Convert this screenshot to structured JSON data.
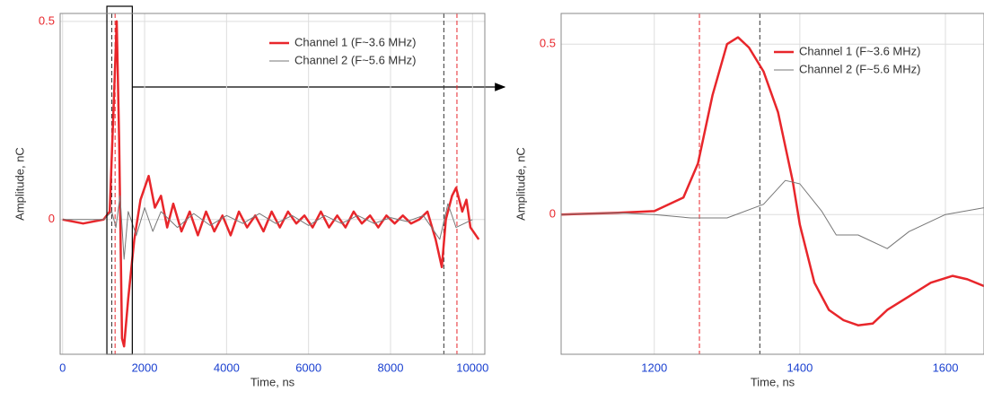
{
  "chart_data": [
    {
      "type": "line",
      "x_label": "Time, ns",
      "y_label": "Amplitude, nC",
      "xlim": [
        -60,
        10300
      ],
      "ylim": [
        -0.34,
        0.52
      ],
      "xticks": [
        0,
        2000,
        4000,
        6000,
        8000,
        10000
      ],
      "yticks": [
        0,
        0.5
      ],
      "xtick_color": "#1a40d0",
      "ytick_color": "#e8262b",
      "grid": true,
      "legend": "upper right",
      "highlight_range": [
        1080,
        1700
      ],
      "cursors": [
        {
          "x": 1280,
          "color": "#e8262b"
        },
        {
          "x": 1200,
          "color": "#333333"
        },
        {
          "x": 9300,
          "color": "#333333"
        },
        {
          "x": 9620,
          "color": "#e8262b"
        }
      ],
      "series": [
        {
          "name": "Channel 1 (F~3.6 MHz)",
          "color": "#e8262b",
          "width": 2.5,
          "x": [
            0,
            500,
            1000,
            1150,
            1250,
            1320,
            1380,
            1450,
            1500,
            1600,
            1750,
            1900,
            2100,
            2250,
            2400,
            2550,
            2700,
            2900,
            3100,
            3300,
            3500,
            3700,
            3900,
            4100,
            4300,
            4500,
            4700,
            4900,
            5100,
            5300,
            5500,
            5700,
            5900,
            6100,
            6300,
            6500,
            6700,
            6900,
            7100,
            7300,
            7500,
            7700,
            7900,
            8100,
            8300,
            8500,
            8700,
            8900,
            9100,
            9250,
            9350,
            9500,
            9600,
            9750,
            9850,
            9950,
            10150
          ],
          "values": [
            0,
            -0.01,
            0,
            0.02,
            0.3,
            0.5,
            0.2,
            -0.3,
            -0.32,
            -0.2,
            -0.05,
            0.05,
            0.11,
            0.03,
            0.06,
            -0.02,
            0.04,
            -0.03,
            0.02,
            -0.04,
            0.02,
            -0.03,
            0.01,
            -0.04,
            0.02,
            -0.02,
            0.01,
            -0.03,
            0.02,
            -0.02,
            0.02,
            -0.01,
            0.01,
            -0.02,
            0.02,
            -0.02,
            0.01,
            -0.02,
            0.02,
            -0.01,
            0.01,
            -0.02,
            0.01,
            -0.01,
            0.01,
            -0.01,
            0,
            0.02,
            -0.05,
            -0.12,
            0,
            0.06,
            0.08,
            0.02,
            0.05,
            -0.02,
            -0.05
          ]
        },
        {
          "name": "Channel 2 (F~5.6 MHz)",
          "color": "#777777",
          "width": 1,
          "x": [
            0,
            1000,
            1200,
            1300,
            1400,
            1500,
            1600,
            1800,
            2000,
            2200,
            2400,
            2800,
            3200,
            3600,
            4000,
            4400,
            4800,
            5200,
            5600,
            6000,
            6400,
            6800,
            7200,
            7600,
            8000,
            8400,
            8800,
            9200,
            9400,
            9600,
            10000
          ],
          "values": [
            0,
            0,
            0.02,
            -0.02,
            0.06,
            -0.1,
            0.02,
            -0.04,
            0.03,
            -0.03,
            0.02,
            -0.02,
            0.015,
            -0.015,
            0.01,
            -0.01,
            0.015,
            -0.01,
            0.01,
            -0.015,
            0.01,
            -0.01,
            0.01,
            -0.01,
            0.005,
            -0.005,
            0.01,
            -0.05,
            0.04,
            -0.02,
            0
          ]
        }
      ]
    },
    {
      "type": "line",
      "x_label": "Time, ns",
      "y_label": "Amplitude, nC",
      "xlim": [
        1072,
        1653
      ],
      "ylim": [
        -0.41,
        0.59
      ],
      "xticks": [
        1200,
        1400,
        1600
      ],
      "yticks": [
        0,
        0.5
      ],
      "xtick_color": "#1a40d0",
      "ytick_color": "#e8262b",
      "grid": true,
      "legend": "upper right",
      "cursors": [
        {
          "x": 1262,
          "color": "#e8262b"
        },
        {
          "x": 1345,
          "color": "#333333"
        }
      ],
      "series": [
        {
          "name": "Channel 1 (F~3.6 MHz)",
          "color": "#e8262b",
          "width": 2.5,
          "x": [
            1072,
            1150,
            1200,
            1240,
            1260,
            1280,
            1300,
            1315,
            1330,
            1350,
            1370,
            1390,
            1400,
            1420,
            1440,
            1460,
            1480,
            1500,
            1520,
            1550,
            1580,
            1610,
            1630,
            1653
          ],
          "values": [
            0,
            0.005,
            0.01,
            0.05,
            0.15,
            0.35,
            0.5,
            0.52,
            0.49,
            0.42,
            0.3,
            0.1,
            -0.03,
            -0.2,
            -0.28,
            -0.31,
            -0.325,
            -0.32,
            -0.28,
            -0.24,
            -0.2,
            -0.18,
            -0.19,
            -0.21
          ]
        },
        {
          "name": "Channel 2 (F~5.6 MHz)",
          "color": "#777777",
          "width": 1,
          "x": [
            1072,
            1150,
            1200,
            1250,
            1300,
            1350,
            1380,
            1400,
            1430,
            1450,
            1480,
            1520,
            1550,
            1600,
            1653
          ],
          "values": [
            0,
            0.005,
            0,
            -0.01,
            -0.01,
            0.03,
            0.1,
            0.09,
            0.01,
            -0.06,
            -0.06,
            -0.1,
            -0.05,
            0,
            0.02
          ]
        }
      ]
    }
  ]
}
